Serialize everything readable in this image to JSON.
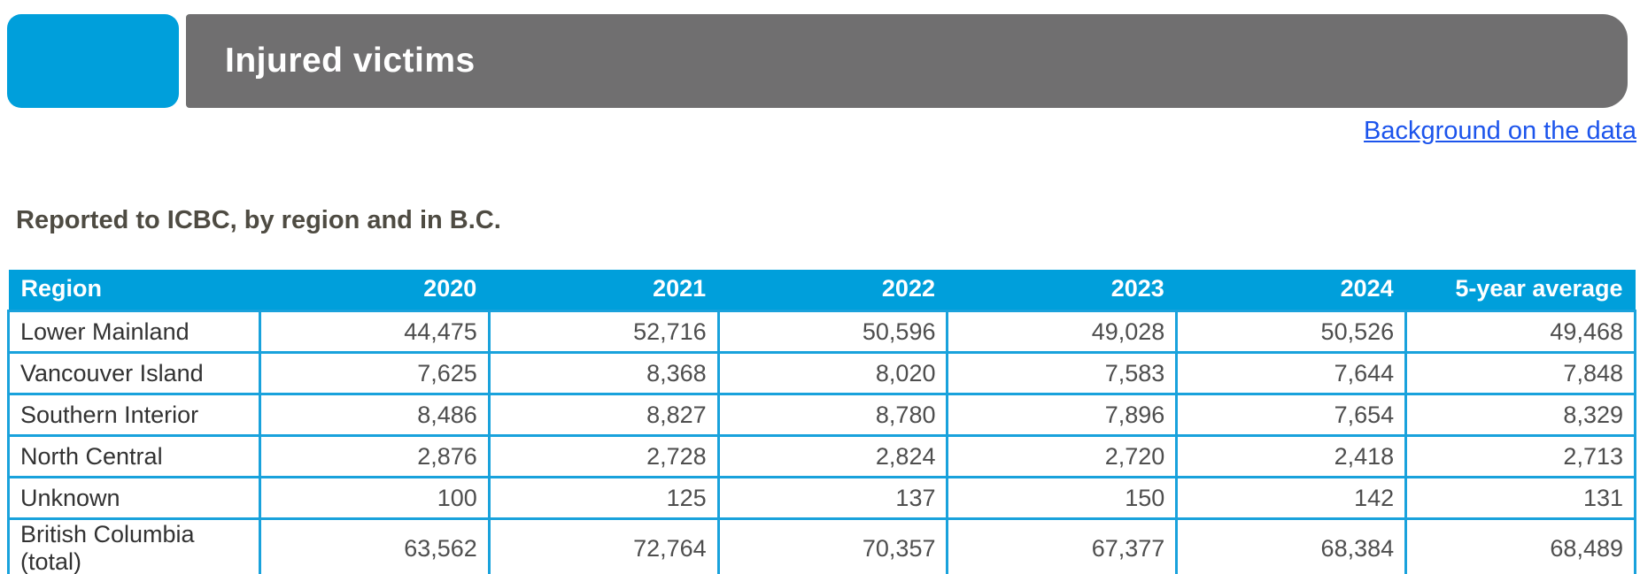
{
  "header": {
    "accent_color": "#009FDB",
    "banner_color": "#706F70"
  },
  "link": {
    "label": "Background on the data",
    "color": "#1C54EC"
  },
  "chart_data": {
    "type": "table",
    "title": "Injured victims",
    "subtitle": "Reported to ICBC, by region and in B.C.",
    "columns": [
      "Region",
      "2020",
      "2021",
      "2022",
      "2023",
      "2024",
      "5-year average"
    ],
    "rows": [
      {
        "region": "Lower Mainland",
        "values": [
          "44,475",
          "52,716",
          "50,596",
          "49,028",
          "50,526",
          "49,468"
        ]
      },
      {
        "region": "Vancouver Island",
        "values": [
          "7,625",
          "8,368",
          "8,020",
          "7,583",
          "7,644",
          "7,848"
        ]
      },
      {
        "region": "Southern Interior",
        "values": [
          "8,486",
          "8,827",
          "8,780",
          "7,896",
          "7,654",
          "8,329"
        ]
      },
      {
        "region": "North Central",
        "values": [
          "2,876",
          "2,728",
          "2,824",
          "2,720",
          "2,418",
          "2,713"
        ]
      },
      {
        "region": "Unknown",
        "values": [
          "100",
          "125",
          "137",
          "150",
          "142",
          "131"
        ]
      },
      {
        "region": "British Columbia (total)",
        "values": [
          "63,562",
          "72,764",
          "70,357",
          "67,377",
          "68,384",
          "68,489"
        ]
      }
    ]
  }
}
